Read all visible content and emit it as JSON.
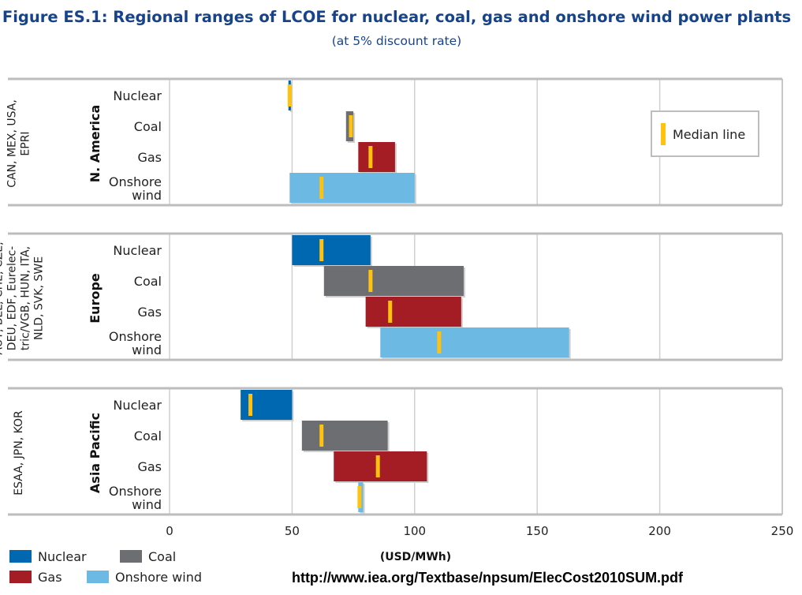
{
  "chart_data": {
    "type": "bar",
    "subtype": "floating-range-bar",
    "title": "Figure ES.1: Regional ranges of LCOE for nuclear, coal, gas and onshore wind power plants",
    "subtitle": "(at 5% discount rate)",
    "xlabel": "(USD/MWh)",
    "xlim": [
      0,
      250
    ],
    "xticks": [
      0,
      50,
      100,
      150,
      200,
      250
    ],
    "grid": true,
    "technologies": [
      {
        "key": "nuclear",
        "label_lines": [
          "Nuclear"
        ],
        "legend": "Nuclear",
        "color": "#0067b1"
      },
      {
        "key": "coal",
        "label_lines": [
          "Coal"
        ],
        "legend": "Coal",
        "color": "#6d6e71"
      },
      {
        "key": "gas",
        "label_lines": [
          "Gas"
        ],
        "legend": "Gas",
        "color": "#a51d24"
      },
      {
        "key": "wind",
        "label_lines": [
          "Onshore",
          "wind"
        ],
        "legend": "Onshore wind",
        "color": "#6cb9e4"
      }
    ],
    "median_color": "#ffc20e",
    "median_legend_label": "Median line",
    "panels": [
      {
        "region": "N. America",
        "countries": [
          "CAN, MEX, USA,",
          "EPRI"
        ],
        "ranges": [
          {
            "tech": "nuclear",
            "min": 48.5,
            "max": 49.5,
            "median": 49
          },
          {
            "tech": "coal",
            "min": 72,
            "max": 75,
            "median": 74
          },
          {
            "tech": "gas",
            "min": 77,
            "max": 92,
            "median": 82
          },
          {
            "tech": "wind",
            "min": 49,
            "max": 100,
            "median": 62
          }
        ]
      },
      {
        "region": "Europe",
        "countries": [
          "AUT, BEL, CHE, CZE,",
          "DEU, EDF, Eurelec-",
          "tric/VGB, HUN, ITA,",
          "NLD, SVK, SWE"
        ],
        "ranges": [
          {
            "tech": "nuclear",
            "min": 50,
            "max": 82,
            "median": 62
          },
          {
            "tech": "coal",
            "min": 63,
            "max": 120,
            "median": 82
          },
          {
            "tech": "gas",
            "min": 80,
            "max": 119,
            "median": 90
          },
          {
            "tech": "wind",
            "min": 86,
            "max": 163,
            "median": 110
          }
        ]
      },
      {
        "region": "Asia Pacific",
        "countries": [
          "ESAA, JPN, KOR"
        ],
        "ranges": [
          {
            "tech": "nuclear",
            "min": 29,
            "max": 50,
            "median": 33
          },
          {
            "tech": "coal",
            "min": 54,
            "max": 89,
            "median": 62
          },
          {
            "tech": "gas",
            "min": 67,
            "max": 105,
            "median": 85
          },
          {
            "tech": "wind",
            "min": 77,
            "max": 79,
            "median": 77.5
          }
        ]
      }
    ],
    "source": "http://www.iea.org/Textbase/npsum/ElecCost2010SUM.pdf"
  }
}
